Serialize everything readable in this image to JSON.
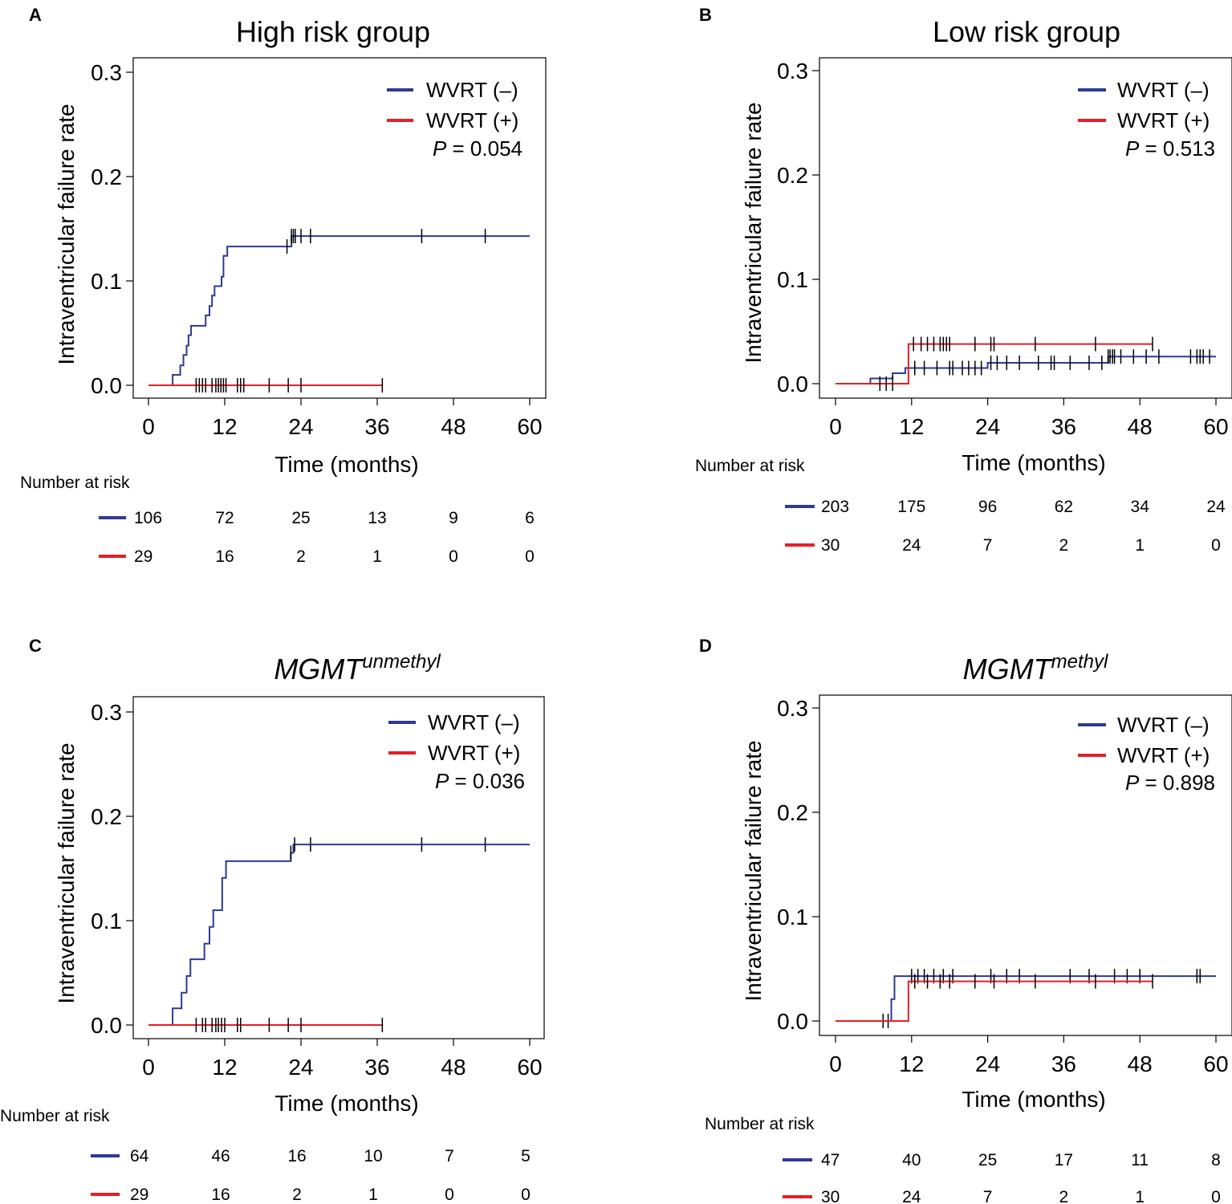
{
  "figure": {
    "axis_label_y": "Intraventricular failure rate",
    "axis_label_x": "Time (months)",
    "risk_table_label": "Number at risk",
    "legend": {
      "series_neg": "WVRT (–)",
      "series_pos": "WVRT (+)",
      "p_prefix": "P",
      "p_eq": " = "
    },
    "colors": {
      "neg": "#2e3a94",
      "pos": "#e41f26",
      "axis": "#000000"
    }
  },
  "chart_data": [
    {
      "panel": "A",
      "type": "line",
      "title": "High risk group",
      "xlabel": "Time (months)",
      "ylabel": "Intraventricular failure rate",
      "xlim": [
        0,
        60
      ],
      "ylim": [
        0,
        0.3
      ],
      "xticks": [
        0,
        12,
        24,
        36,
        48,
        60
      ],
      "yticks": [
        0,
        0.1,
        0.2,
        0.3
      ],
      "yticklabels": [
        "0.0",
        "0.1",
        "0.2",
        "0.3"
      ],
      "p_value": "0.054",
      "series": [
        {
          "name": "WVRT (–)",
          "color": "#2e3a94",
          "steps": [
            [
              0,
              0
            ],
            [
              3.8,
              0.01
            ],
            [
              5,
              0.019
            ],
            [
              5.5,
              0.029
            ],
            [
              6,
              0.038
            ],
            [
              6.3,
              0.048
            ],
            [
              6.7,
              0.057
            ],
            [
              9,
              0.067
            ],
            [
              9.6,
              0.076
            ],
            [
              10,
              0.086
            ],
            [
              10.4,
              0.095
            ],
            [
              11.5,
              0.104
            ],
            [
              11.8,
              0.124
            ],
            [
              12.4,
              0.133
            ],
            [
              22.5,
              0.143
            ],
            [
              60,
              0.143
            ]
          ],
          "censor": [
            21.8,
            22.5,
            22.8,
            23.1,
            24,
            25.5,
            43,
            53
          ]
        },
        {
          "name": "WVRT (+)",
          "color": "#e41f26",
          "steps": [
            [
              0,
              0
            ],
            [
              36.8,
              0
            ]
          ],
          "censor": [
            7.5,
            8,
            8.5,
            9,
            10,
            10.6,
            11,
            11.4,
            11.8,
            12.2,
            14,
            14.5,
            15,
            19,
            22,
            24,
            36.8
          ]
        }
      ],
      "risk_table": {
        "times": [
          0,
          12,
          24,
          36,
          48,
          60
        ],
        "neg": [
          "106",
          "72",
          "25",
          "13",
          "9",
          "6"
        ],
        "pos": [
          "29",
          "16",
          "2",
          "1",
          "0",
          "0"
        ]
      }
    },
    {
      "panel": "B",
      "type": "line",
      "title": "Low risk group",
      "xlabel": "Time (months)",
      "ylabel": "Intraventricular failure rate",
      "xlim": [
        0,
        60
      ],
      "ylim": [
        0,
        0.3
      ],
      "xticks": [
        0,
        12,
        24,
        36,
        48,
        60
      ],
      "yticks": [
        0,
        0.1,
        0.2,
        0.3
      ],
      "yticklabels": [
        "0.0",
        "0.1",
        "0.2",
        "0.3"
      ],
      "p_value": "0.513",
      "series": [
        {
          "name": "WVRT (–)",
          "color": "#2e3a94",
          "steps": [
            [
              0,
              0
            ],
            [
              5.5,
              0.005
            ],
            [
              9,
              0.01
            ],
            [
              11,
              0.015
            ],
            [
              24,
              0.02
            ],
            [
              43,
              0.026
            ],
            [
              60,
              0.026
            ]
          ],
          "censor": [
            12.5,
            14,
            16,
            18,
            18.5,
            20,
            21,
            22,
            23,
            24.5,
            25.5,
            27,
            29,
            32,
            34,
            34.5,
            37,
            40,
            42,
            43,
            43.3,
            43.7,
            44,
            45,
            47,
            49,
            51,
            56,
            57,
            57.5,
            58,
            59
          ]
        },
        {
          "name": "WVRT (+)",
          "color": "#e41f26",
          "steps": [
            [
              0,
              0
            ],
            [
              11.5,
              0.038
            ],
            [
              50,
              0.038
            ]
          ],
          "censor": [
            7,
            8,
            9,
            12.3,
            13.5,
            14.5,
            15.5,
            16.5,
            17,
            17.5,
            18,
            22,
            24.5,
            25,
            31.5,
            41,
            50
          ]
        }
      ],
      "risk_table": {
        "times": [
          0,
          12,
          24,
          36,
          48,
          60
        ],
        "neg": [
          "203",
          "175",
          "96",
          "62",
          "34",
          "24"
        ],
        "pos": [
          "30",
          "24",
          "7",
          "2",
          "1",
          "0"
        ]
      }
    },
    {
      "panel": "C",
      "type": "line",
      "title_main": "MGMT",
      "title_sup": "unmethyl",
      "xlabel": "Time (months)",
      "ylabel": "Intraventricular failure rate",
      "xlim": [
        0,
        60
      ],
      "ylim": [
        0,
        0.3
      ],
      "xticks": [
        0,
        12,
        24,
        36,
        48,
        60
      ],
      "yticks": [
        0,
        0.1,
        0.2,
        0.3
      ],
      "yticklabels": [
        "0.0",
        "0.1",
        "0.2",
        "0.3"
      ],
      "p_value": "0.036",
      "series": [
        {
          "name": "WVRT (–)",
          "color": "#2e3a94",
          "steps": [
            [
              0,
              0
            ],
            [
              3.8,
              0.016
            ],
            [
              5.2,
              0.031
            ],
            [
              6,
              0.047
            ],
            [
              6.6,
              0.063
            ],
            [
              8.8,
              0.078
            ],
            [
              9.6,
              0.094
            ],
            [
              10.2,
              0.11
            ],
            [
              11.6,
              0.141
            ],
            [
              12.2,
              0.157
            ],
            [
              22.4,
              0.165
            ],
            [
              22.8,
              0.173
            ],
            [
              60,
              0.173
            ]
          ],
          "censor": [
            22.4,
            23,
            25.5,
            43,
            53
          ]
        },
        {
          "name": "WVRT (+)",
          "color": "#e41f26",
          "steps": [
            [
              0,
              0
            ],
            [
              36.8,
              0
            ]
          ],
          "censor": [
            7.5,
            8.5,
            9,
            10,
            10.6,
            11,
            11.5,
            12,
            14,
            14.5,
            19,
            22,
            24,
            36.8
          ]
        }
      ],
      "risk_table": {
        "times": [
          0,
          12,
          24,
          36,
          48,
          60
        ],
        "neg": [
          "64",
          "46",
          "16",
          "10",
          "7",
          "5"
        ],
        "pos": [
          "29",
          "16",
          "2",
          "1",
          "0",
          "0"
        ]
      }
    },
    {
      "panel": "D",
      "type": "line",
      "title_main": "MGMT",
      "title_sup": "methyl",
      "xlabel": "Time (months)",
      "ylabel": "Intraventricular failure rate",
      "xlim": [
        0,
        60
      ],
      "ylim": [
        0,
        0.3
      ],
      "xticks": [
        0,
        12,
        24,
        36,
        48,
        60
      ],
      "yticks": [
        0,
        0.1,
        0.2,
        0.3
      ],
      "yticklabels": [
        "0.0",
        "0.1",
        "0.2",
        "0.3"
      ],
      "p_value": "0.898",
      "series": [
        {
          "name": "WVRT (–)",
          "color": "#2e3a94",
          "steps": [
            [
              0,
              0
            ],
            [
              8.8,
              0.021
            ],
            [
              9.3,
              0.043
            ],
            [
              60,
              0.043
            ]
          ],
          "censor": [
            7.5,
            8.3,
            12,
            13,
            14,
            15.5,
            17,
            18.5,
            24.5,
            27,
            29,
            37,
            40,
            44,
            46,
            48,
            57,
            57.5
          ]
        },
        {
          "name": "WVRT (+)",
          "color": "#e41f26",
          "steps": [
            [
              0,
              0
            ],
            [
              11.5,
              0.038
            ],
            [
              50,
              0.038
            ]
          ],
          "censor": [
            12.5,
            14.5,
            16.5,
            18,
            22,
            25,
            31.5,
            41,
            50
          ]
        }
      ],
      "risk_table": {
        "times": [
          0,
          12,
          24,
          36,
          48,
          60
        ],
        "neg": [
          "47",
          "40",
          "25",
          "17",
          "11",
          "8"
        ],
        "pos": [
          "30",
          "24",
          "7",
          "2",
          "1",
          "0"
        ]
      }
    }
  ]
}
